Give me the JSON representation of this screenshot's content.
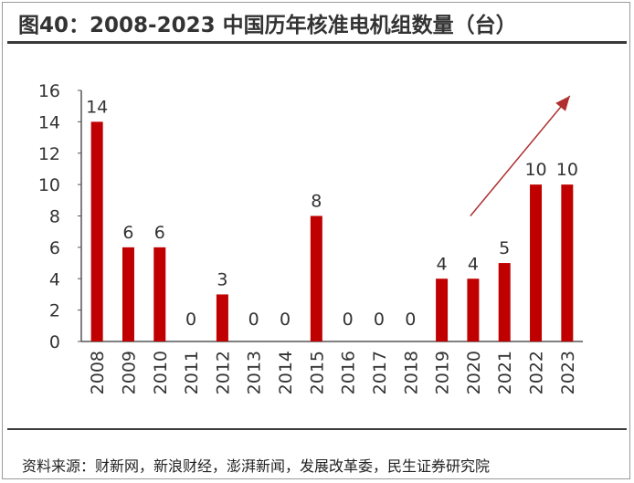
{
  "header": {
    "title": "图40：2008-2023 中国历年核准电机组数量（台）"
  },
  "footer": {
    "source": "资料来源：财新网，新浪财经，澎湃新闻，发展改革委，民生证券研究院",
    "watermark": "民生证券研究院"
  },
  "colors": {
    "bar": "#c00000",
    "arrow": "#b03030",
    "axis": "#555555"
  },
  "chart_data": {
    "type": "bar",
    "categories": [
      "2008",
      "2009",
      "2010",
      "2011",
      "2012",
      "2013",
      "2014",
      "2015",
      "2016",
      "2017",
      "2018",
      "2019",
      "2020",
      "2021",
      "2022",
      "2023"
    ],
    "values": [
      14,
      6,
      6,
      0,
      3,
      0,
      0,
      8,
      0,
      0,
      0,
      4,
      4,
      5,
      10,
      10
    ],
    "ylim": [
      0,
      16
    ],
    "yticks": [
      0,
      2,
      4,
      6,
      8,
      10,
      12,
      14,
      16
    ],
    "xlabel": "",
    "ylabel": "",
    "data_labels": true,
    "grid": false,
    "annotation": "upward trend arrow from 2020 toward 2023"
  }
}
